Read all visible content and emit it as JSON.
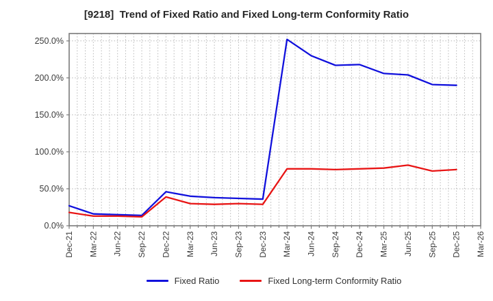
{
  "title": "[9218]  Trend of Fixed Ratio and Fixed Long-term Conformity Ratio",
  "colors": {
    "fixed_ratio": "#1010dc",
    "conformity_ratio": "#e81414",
    "gridline": "#b5b5b5",
    "axis_frame": "#7a7a7a",
    "tick_text": "#3a3a3a",
    "title_text": "#262626",
    "background": "#ffffff"
  },
  "chart_data": {
    "type": "line",
    "title": "[9218]  Trend of Fixed Ratio and Fixed Long-term Conformity Ratio",
    "xlabel": "",
    "ylabel": "",
    "categories": [
      "Dec-21",
      "Mar-22",
      "Jun-22",
      "Sep-22",
      "Dec-22",
      "Mar-23",
      "Jun-23",
      "Sep-23",
      "Dec-23",
      "Mar-24",
      "Jun-24",
      "Sep-24",
      "Dec-24",
      "Mar-25",
      "Jun-25",
      "Sep-25",
      "Dec-25",
      "Mar-26"
    ],
    "series": [
      {
        "name": "Fixed Ratio",
        "color": "#1010dc",
        "values": [
          27,
          16,
          15,
          14,
          46,
          40,
          38,
          37,
          36,
          252,
          230,
          217,
          218,
          206,
          204,
          191,
          190
        ]
      },
      {
        "name": "Fixed Long-term Conformity Ratio",
        "color": "#e81414",
        "values": [
          18,
          13,
          13,
          12,
          39,
          30,
          29,
          30,
          29,
          77,
          77,
          76,
          77,
          78,
          82,
          74,
          76
        ]
      }
    ],
    "yticks": [
      0,
      50,
      100,
      150,
      200,
      250
    ],
    "ytick_labels": [
      "0.0%",
      "50.0%",
      "100.0%",
      "150.0%",
      "200.0%",
      "250.0%"
    ],
    "ylim": [
      0,
      260
    ],
    "x_minor_per_interval": 3,
    "grid": true,
    "legend_position": "bottom-center",
    "note_last_category_has_no_data": true
  }
}
